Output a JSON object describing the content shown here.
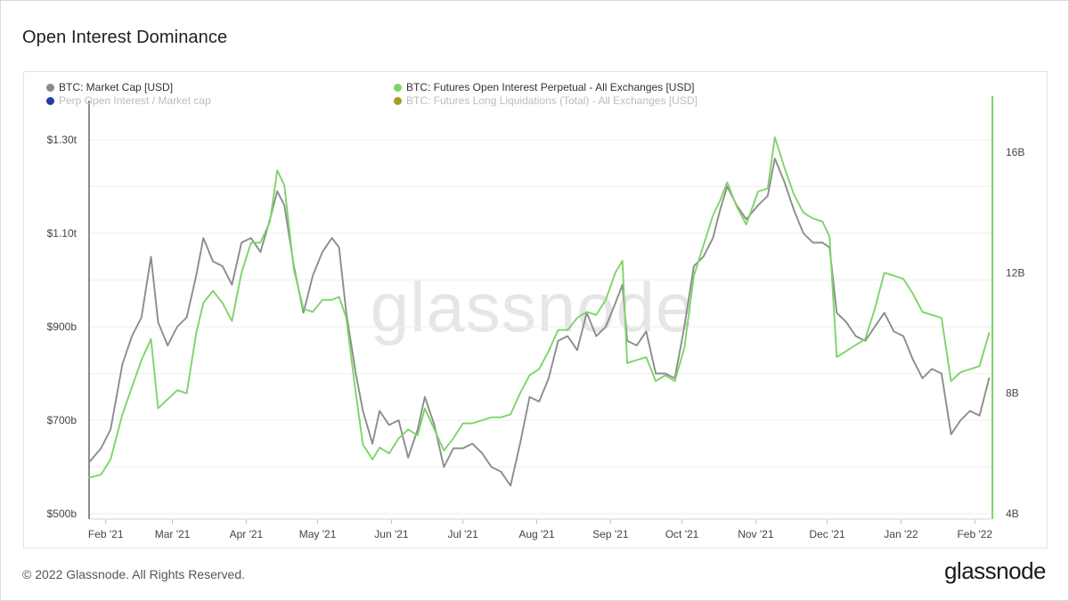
{
  "title": "Open Interest Dominance",
  "footer": {
    "copyright": "© 2022 Glassnode. All Rights Reserved.",
    "brand": "glassnode"
  },
  "watermark": "glassnode",
  "legend": [
    {
      "label": "BTC: Market Cap [USD]",
      "color": "#8c8c8c",
      "dim": false
    },
    {
      "label": "BTC: Futures Open Interest Perpetual - All Exchanges [USD]",
      "color": "#7ed46a",
      "dim": false
    },
    {
      "label": "Perp Open Interest / Market cap",
      "color": "#1f3fa0",
      "dim": true
    },
    {
      "label": "BTC: Futures Long Liquidations (Total) - All Exchanges [USD]",
      "color": "#a89a2a",
      "dim": true
    }
  ],
  "chart_data": {
    "type": "line",
    "title": "Open Interest Dominance",
    "x_ticks": [
      "Feb '21",
      "Mar '21",
      "Apr '21",
      "May '21",
      "Jun '21",
      "Jul '21",
      "Aug '21",
      "Sep '21",
      "Oct '21",
      "Nov '21",
      "Dec '21",
      "Jan '22",
      "Feb '22"
    ],
    "y_left": {
      "ticks": [
        "$500b",
        "$700b",
        "$900b",
        "$1.10t",
        "$1.30t"
      ],
      "values": [
        500,
        700,
        900,
        1100,
        1300
      ],
      "unit": "billion USD",
      "range": [
        500,
        1300
      ]
    },
    "y_right": {
      "ticks": [
        "4B",
        "8B",
        "12B",
        "16B"
      ],
      "values": [
        4,
        8,
        12,
        16
      ],
      "unit": "billion USD",
      "range": [
        4,
        16
      ]
    },
    "grid": true,
    "legend_position": "top-left",
    "x_range": [
      "2021-01-25",
      "2022-02-08"
    ],
    "series": [
      {
        "name": "BTC: Market Cap [USD]",
        "color": "#8c8c8c",
        "axis": "left",
        "points": [
          [
            "2021-01-25",
            610
          ],
          [
            "2021-01-30",
            640
          ],
          [
            "2021-02-03",
            680
          ],
          [
            "2021-02-08",
            820
          ],
          [
            "2021-02-12",
            880
          ],
          [
            "2021-02-16",
            920
          ],
          [
            "2021-02-20",
            1050
          ],
          [
            "2021-02-23",
            910
          ],
          [
            "2021-02-27",
            860
          ],
          [
            "2021-03-03",
            900
          ],
          [
            "2021-03-07",
            920
          ],
          [
            "2021-03-11",
            1010
          ],
          [
            "2021-03-14",
            1090
          ],
          [
            "2021-03-18",
            1040
          ],
          [
            "2021-03-22",
            1030
          ],
          [
            "2021-03-26",
            990
          ],
          [
            "2021-03-30",
            1080
          ],
          [
            "2021-04-03",
            1090
          ],
          [
            "2021-04-07",
            1060
          ],
          [
            "2021-04-11",
            1130
          ],
          [
            "2021-04-14",
            1190
          ],
          [
            "2021-04-17",
            1160
          ],
          [
            "2021-04-21",
            1030
          ],
          [
            "2021-04-25",
            930
          ],
          [
            "2021-04-29",
            1010
          ],
          [
            "2021-05-03",
            1060
          ],
          [
            "2021-05-07",
            1090
          ],
          [
            "2021-05-10",
            1070
          ],
          [
            "2021-05-13",
            930
          ],
          [
            "2021-05-17",
            800
          ],
          [
            "2021-05-20",
            720
          ],
          [
            "2021-05-24",
            650
          ],
          [
            "2021-05-27",
            720
          ],
          [
            "2021-05-31",
            690
          ],
          [
            "2021-06-04",
            700
          ],
          [
            "2021-06-08",
            620
          ],
          [
            "2021-06-12",
            680
          ],
          [
            "2021-06-15",
            750
          ],
          [
            "2021-06-19",
            690
          ],
          [
            "2021-06-23",
            600
          ],
          [
            "2021-06-27",
            640
          ],
          [
            "2021-07-01",
            640
          ],
          [
            "2021-07-05",
            650
          ],
          [
            "2021-07-09",
            630
          ],
          [
            "2021-07-13",
            600
          ],
          [
            "2021-07-17",
            590
          ],
          [
            "2021-07-21",
            560
          ],
          [
            "2021-07-25",
            650
          ],
          [
            "2021-07-29",
            750
          ],
          [
            "2021-08-02",
            740
          ],
          [
            "2021-08-06",
            790
          ],
          [
            "2021-08-10",
            870
          ],
          [
            "2021-08-14",
            880
          ],
          [
            "2021-08-18",
            850
          ],
          [
            "2021-08-22",
            930
          ],
          [
            "2021-08-26",
            880
          ],
          [
            "2021-08-30",
            900
          ],
          [
            "2021-09-03",
            950
          ],
          [
            "2021-09-06",
            990
          ],
          [
            "2021-09-08",
            870
          ],
          [
            "2021-09-12",
            860
          ],
          [
            "2021-09-16",
            890
          ],
          [
            "2021-09-20",
            800
          ],
          [
            "2021-09-24",
            800
          ],
          [
            "2021-09-28",
            790
          ],
          [
            "2021-10-02",
            900
          ],
          [
            "2021-10-06",
            1030
          ],
          [
            "2021-10-10",
            1050
          ],
          [
            "2021-10-14",
            1090
          ],
          [
            "2021-10-17",
            1150
          ],
          [
            "2021-10-20",
            1200
          ],
          [
            "2021-10-24",
            1160
          ],
          [
            "2021-10-28",
            1130
          ],
          [
            "2021-11-02",
            1160
          ],
          [
            "2021-11-06",
            1180
          ],
          [
            "2021-11-09",
            1260
          ],
          [
            "2021-11-13",
            1210
          ],
          [
            "2021-11-17",
            1150
          ],
          [
            "2021-11-21",
            1100
          ],
          [
            "2021-11-25",
            1080
          ],
          [
            "2021-11-29",
            1080
          ],
          [
            "2021-12-02",
            1070
          ],
          [
            "2021-12-05",
            930
          ],
          [
            "2021-12-09",
            910
          ],
          [
            "2021-12-13",
            880
          ],
          [
            "2021-12-17",
            870
          ],
          [
            "2021-12-21",
            900
          ],
          [
            "2021-12-25",
            930
          ],
          [
            "2021-12-29",
            890
          ],
          [
            "2022-01-02",
            880
          ],
          [
            "2022-01-06",
            830
          ],
          [
            "2022-01-10",
            790
          ],
          [
            "2022-01-14",
            810
          ],
          [
            "2022-01-18",
            800
          ],
          [
            "2022-01-22",
            670
          ],
          [
            "2022-01-26",
            700
          ],
          [
            "2022-01-30",
            720
          ],
          [
            "2022-02-03",
            710
          ],
          [
            "2022-02-07",
            790
          ]
        ]
      },
      {
        "name": "BTC: Futures Open Interest Perpetual - All Exchanges [USD]",
        "color": "#7ed46a",
        "axis": "right",
        "points": [
          [
            "2021-01-25",
            5.2
          ],
          [
            "2021-01-30",
            5.3
          ],
          [
            "2021-02-03",
            5.8
          ],
          [
            "2021-02-08",
            7.3
          ],
          [
            "2021-02-12",
            8.2
          ],
          [
            "2021-02-16",
            9.1
          ],
          [
            "2021-02-20",
            9.8
          ],
          [
            "2021-02-23",
            7.5
          ],
          [
            "2021-02-27",
            7.8
          ],
          [
            "2021-03-03",
            8.1
          ],
          [
            "2021-03-07",
            8.0
          ],
          [
            "2021-03-11",
            10.0
          ],
          [
            "2021-03-14",
            11.0
          ],
          [
            "2021-03-18",
            11.4
          ],
          [
            "2021-03-22",
            11.0
          ],
          [
            "2021-03-26",
            10.4
          ],
          [
            "2021-03-30",
            12.0
          ],
          [
            "2021-04-03",
            13.0
          ],
          [
            "2021-04-07",
            13.0
          ],
          [
            "2021-04-11",
            13.7
          ],
          [
            "2021-04-14",
            15.4
          ],
          [
            "2021-04-17",
            14.9
          ],
          [
            "2021-04-21",
            12.1
          ],
          [
            "2021-04-25",
            10.8
          ],
          [
            "2021-04-29",
            10.7
          ],
          [
            "2021-05-03",
            11.1
          ],
          [
            "2021-05-07",
            11.1
          ],
          [
            "2021-05-10",
            11.2
          ],
          [
            "2021-05-13",
            10.5
          ],
          [
            "2021-05-17",
            8.0
          ],
          [
            "2021-05-20",
            6.3
          ],
          [
            "2021-05-24",
            5.8
          ],
          [
            "2021-05-27",
            6.2
          ],
          [
            "2021-05-31",
            6.0
          ],
          [
            "2021-06-04",
            6.5
          ],
          [
            "2021-06-08",
            6.8
          ],
          [
            "2021-06-12",
            6.6
          ],
          [
            "2021-06-15",
            7.5
          ],
          [
            "2021-06-19",
            6.8
          ],
          [
            "2021-06-23",
            6.1
          ],
          [
            "2021-06-27",
            6.5
          ],
          [
            "2021-07-01",
            7.0
          ],
          [
            "2021-07-05",
            7.0
          ],
          [
            "2021-07-09",
            7.1
          ],
          [
            "2021-07-13",
            7.2
          ],
          [
            "2021-07-17",
            7.2
          ],
          [
            "2021-07-21",
            7.3
          ],
          [
            "2021-07-25",
            8.0
          ],
          [
            "2021-07-29",
            8.6
          ],
          [
            "2021-08-02",
            8.8
          ],
          [
            "2021-08-06",
            9.4
          ],
          [
            "2021-08-10",
            10.1
          ],
          [
            "2021-08-14",
            10.1
          ],
          [
            "2021-08-18",
            10.5
          ],
          [
            "2021-08-22",
            10.7
          ],
          [
            "2021-08-26",
            10.6
          ],
          [
            "2021-08-30",
            11.1
          ],
          [
            "2021-09-03",
            12.0
          ],
          [
            "2021-09-06",
            12.4
          ],
          [
            "2021-09-08",
            9.0
          ],
          [
            "2021-09-12",
            9.1
          ],
          [
            "2021-09-16",
            9.2
          ],
          [
            "2021-09-20",
            8.4
          ],
          [
            "2021-09-24",
            8.6
          ],
          [
            "2021-09-28",
            8.4
          ],
          [
            "2021-10-02",
            9.5
          ],
          [
            "2021-10-06",
            11.9
          ],
          [
            "2021-10-10",
            12.9
          ],
          [
            "2021-10-14",
            13.9
          ],
          [
            "2021-10-17",
            14.4
          ],
          [
            "2021-10-20",
            15.0
          ],
          [
            "2021-10-24",
            14.2
          ],
          [
            "2021-10-28",
            13.6
          ],
          [
            "2021-11-02",
            14.7
          ],
          [
            "2021-11-06",
            14.8
          ],
          [
            "2021-11-09",
            16.5
          ],
          [
            "2021-11-13",
            15.5
          ],
          [
            "2021-11-17",
            14.6
          ],
          [
            "2021-11-21",
            14.0
          ],
          [
            "2021-11-25",
            13.8
          ],
          [
            "2021-11-29",
            13.7
          ],
          [
            "2021-12-02",
            13.2
          ],
          [
            "2021-12-05",
            9.2
          ],
          [
            "2021-12-09",
            9.4
          ],
          [
            "2021-12-13",
            9.6
          ],
          [
            "2021-12-17",
            9.8
          ],
          [
            "2021-12-21",
            10.8
          ],
          [
            "2021-12-25",
            12.0
          ],
          [
            "2021-12-29",
            11.9
          ],
          [
            "2022-01-02",
            11.8
          ],
          [
            "2022-01-06",
            11.3
          ],
          [
            "2022-01-10",
            10.7
          ],
          [
            "2022-01-14",
            10.6
          ],
          [
            "2022-01-18",
            10.5
          ],
          [
            "2022-01-22",
            8.4
          ],
          [
            "2022-01-26",
            8.7
          ],
          [
            "2022-01-30",
            8.8
          ],
          [
            "2022-02-03",
            8.9
          ],
          [
            "2022-02-07",
            10.0
          ]
        ]
      }
    ]
  }
}
